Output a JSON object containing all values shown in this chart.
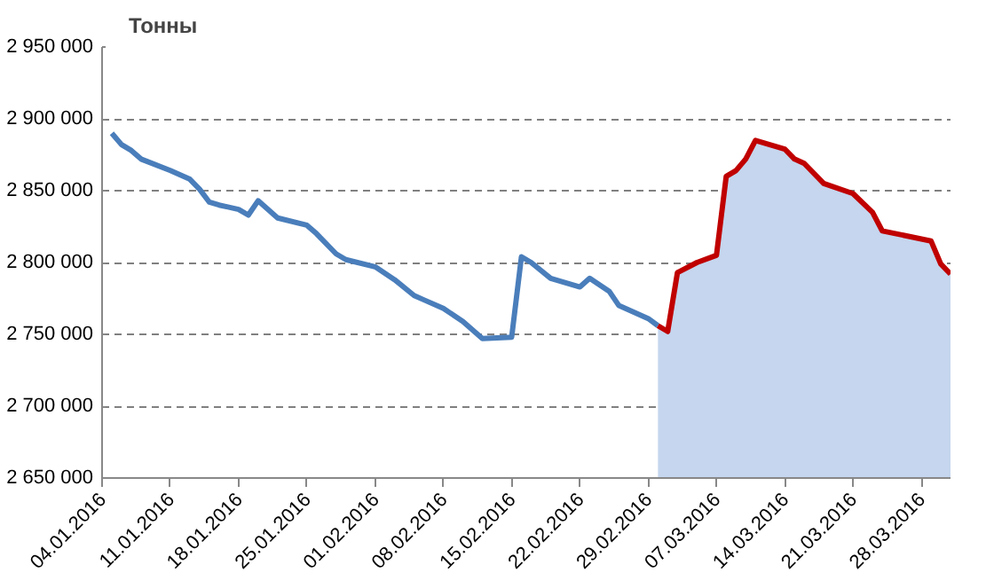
{
  "chart_data": {
    "type": "line",
    "ylabel": "Тонны",
    "xlim": [
      "2016-01-04",
      "2016-03-31"
    ],
    "ylim": [
      2650000,
      2950000
    ],
    "xticks": [
      {
        "value": "2016-01-04",
        "label": "04.01.2016"
      },
      {
        "value": "2016-01-11",
        "label": "11.01.2016"
      },
      {
        "value": "2016-01-18",
        "label": "18.01.2016"
      },
      {
        "value": "2016-01-25",
        "label": "25.01.2016"
      },
      {
        "value": "2016-02-01",
        "label": "01.02.2016"
      },
      {
        "value": "2016-02-08",
        "label": "08.02.2016"
      },
      {
        "value": "2016-02-15",
        "label": "15.02.2016"
      },
      {
        "value": "2016-02-22",
        "label": "22.02.2016"
      },
      {
        "value": "2016-02-29",
        "label": "29.02.2016"
      },
      {
        "value": "2016-03-07",
        "label": "07.03.2016"
      },
      {
        "value": "2016-03-14",
        "label": "14.03.2016"
      },
      {
        "value": "2016-03-21",
        "label": "21.03.2016"
      },
      {
        "value": "2016-03-28",
        "label": "28.03.2016"
      }
    ],
    "yticks": [
      {
        "value": 2650000,
        "label": "2 650 000"
      },
      {
        "value": 2700000,
        "label": "2 700 000"
      },
      {
        "value": 2750000,
        "label": "2 750 000"
      },
      {
        "value": 2800000,
        "label": "2 800 000"
      },
      {
        "value": 2850000,
        "label": "2 850 000"
      },
      {
        "value": 2900000,
        "label": "2 900 000"
      },
      {
        "value": 2950000,
        "label": "2 950 000"
      }
    ],
    "grid": "y",
    "marker": "none",
    "line_style": "solid",
    "series": [
      {
        "type": "area",
        "color": "#c5d6ee",
        "x": [
          "2016-03-01",
          "2016-03-02",
          "2016-03-03",
          "2016-03-05",
          "2016-03-07",
          "2016-03-08",
          "2016-03-09",
          "2016-03-10",
          "2016-03-11",
          "2016-03-14",
          "2016-03-15",
          "2016-03-16",
          "2016-03-18",
          "2016-03-21",
          "2016-03-23",
          "2016-03-24",
          "2016-03-29",
          "2016-03-30",
          "2016-03-31"
        ],
        "values": [
          2756000,
          2752000,
          2793000,
          2800000,
          2805000,
          2860000,
          2864000,
          2872000,
          2885000,
          2879000,
          2872000,
          2869000,
          2855000,
          2848000,
          2835000,
          2822000,
          2815000,
          2799000,
          2792000
        ]
      },
      {
        "color": "#4a7ebb",
        "x": [
          "2016-01-05",
          "2016-01-06",
          "2016-01-07",
          "2016-01-08",
          "2016-01-11",
          "2016-01-13",
          "2016-01-14",
          "2016-01-15",
          "2016-01-16",
          "2016-01-18",
          "2016-01-19",
          "2016-01-20",
          "2016-01-22",
          "2016-01-25",
          "2016-01-26",
          "2016-01-28",
          "2016-01-29",
          "2016-02-01",
          "2016-02-03",
          "2016-02-05",
          "2016-02-06",
          "2016-02-08",
          "2016-02-10",
          "2016-02-12",
          "2016-02-15",
          "2016-02-16",
          "2016-02-17",
          "2016-02-19",
          "2016-02-22",
          "2016-02-23",
          "2016-02-25",
          "2016-02-26",
          "2016-02-29",
          "2016-03-01"
        ],
        "values": [
          2890000,
          2882000,
          2878000,
          2872000,
          2864000,
          2858000,
          2851000,
          2842000,
          2840000,
          2837000,
          2833000,
          2843000,
          2831000,
          2826000,
          2820000,
          2806000,
          2802000,
          2797000,
          2788000,
          2777000,
          2774000,
          2768000,
          2759000,
          2747000,
          2748000,
          2804000,
          2800000,
          2789000,
          2783000,
          2789000,
          2780000,
          2770000,
          2761000,
          2756000
        ]
      },
      {
        "color": "#c00000",
        "x": [
          "2016-03-01",
          "2016-03-02",
          "2016-03-03",
          "2016-03-05",
          "2016-03-07",
          "2016-03-08",
          "2016-03-09",
          "2016-03-10",
          "2016-03-11",
          "2016-03-14",
          "2016-03-15",
          "2016-03-16",
          "2016-03-18",
          "2016-03-21",
          "2016-03-23",
          "2016-03-24",
          "2016-03-29",
          "2016-03-30",
          "2016-03-31"
        ],
        "values": [
          2756000,
          2752000,
          2793000,
          2800000,
          2805000,
          2860000,
          2864000,
          2872000,
          2885000,
          2879000,
          2872000,
          2869000,
          2855000,
          2848000,
          2835000,
          2822000,
          2815000,
          2799000,
          2792000
        ]
      }
    ]
  }
}
